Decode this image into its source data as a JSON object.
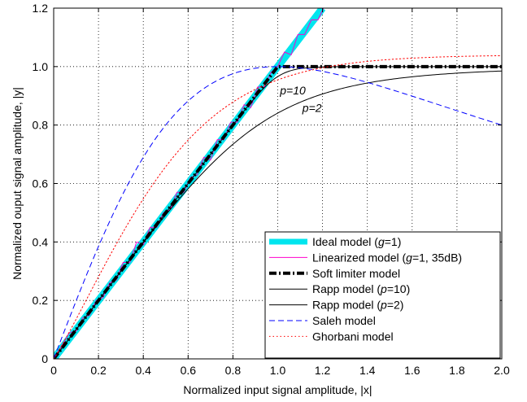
{
  "chart_data": {
    "type": "line",
    "xlabel": "Normalized input signal amplitude, |x|",
    "ylabel": "Normalized ouput signal amplitude, |y|",
    "xlim": [
      0,
      2.0
    ],
    "ylim": [
      0,
      1.2
    ],
    "xticks": [
      "0",
      "0.2",
      "0.4",
      "0.6",
      "0.8",
      "1.0",
      "1.2",
      "1.4",
      "1.6",
      "1.8",
      "2.0"
    ],
    "yticks": [
      "0",
      "0.2",
      "0.4",
      "0.6",
      "0.8",
      "1.0",
      "1.2"
    ],
    "grid": true,
    "legend_position": "bottom-right",
    "annotations": [
      {
        "text": "p=10",
        "x": 1.01,
        "y": 0.905,
        "italic": true
      },
      {
        "text": "p=2",
        "x": 1.11,
        "y": 0.845,
        "italic": true
      }
    ],
    "series": [
      {
        "name": "Ideal model (g=1)",
        "legend_parts": [
          [
            "Ideal model (",
            false
          ],
          [
            "g",
            true
          ],
          [
            "=1)",
            false
          ]
        ],
        "color": "#00e5ee",
        "style": "solid",
        "width": "thick",
        "x": [
          0,
          1.2
        ],
        "y": [
          0,
          1.2
        ]
      },
      {
        "name": "Linearized model (g=1, 35dB)",
        "legend_parts": [
          [
            "Linearized model (",
            false
          ],
          [
            "g",
            true
          ],
          [
            "=1, 35dB)",
            false
          ]
        ],
        "color": "#ff00cc",
        "style": "solid",
        "width": "thin",
        "x": [
          0,
          0.04,
          0.07,
          0.1,
          0.13,
          0.16,
          0.19,
          0.22,
          0.25,
          0.28,
          0.31,
          0.34,
          0.37,
          0.4,
          0.43,
          0.46,
          0.49,
          0.52,
          0.55,
          0.58,
          0.61,
          0.64,
          0.67,
          0.7,
          0.73,
          0.76,
          0.79,
          0.82,
          0.85,
          0.88,
          0.91,
          0.94,
          0.97,
          1.0,
          1.03,
          1.06,
          1.09,
          1.12,
          1.15,
          1.18,
          1.21
        ],
        "y": [
          0,
          0.05,
          0.09,
          0.095,
          0.14,
          0.15,
          0.2,
          0.21,
          0.26,
          0.27,
          0.33,
          0.33,
          0.4,
          0.39,
          0.45,
          0.45,
          0.5,
          0.51,
          0.57,
          0.57,
          0.62,
          0.63,
          0.69,
          0.68,
          0.75,
          0.75,
          0.81,
          0.81,
          0.87,
          0.86,
          0.93,
          0.93,
          0.98,
          1.0,
          1.05,
          1.04,
          1.11,
          1.11,
          1.16,
          1.16,
          1.21
        ]
      },
      {
        "name": "Soft limiter model",
        "legend_parts": [
          [
            "Soft limiter model",
            false
          ]
        ],
        "color": "#000000",
        "style": "dashdot",
        "width": "thick",
        "x": [
          0,
          1.0,
          2.0
        ],
        "y": [
          0,
          1.0,
          1.0
        ]
      },
      {
        "name": "Rapp model (p=10)",
        "legend_parts": [
          [
            "Rapp model (",
            false
          ],
          [
            "p",
            true
          ],
          [
            "=10)",
            false
          ]
        ],
        "color": "#000000",
        "style": "solid",
        "width": "thin",
        "model": "rapp",
        "p": 10
      },
      {
        "name": "Rapp model (p=2)",
        "legend_parts": [
          [
            "Rapp model (",
            false
          ],
          [
            "p",
            true
          ],
          [
            "=2)",
            false
          ]
        ],
        "color": "#000000",
        "style": "solid",
        "width": "thin",
        "model": "rapp",
        "p": 2
      },
      {
        "name": "Saleh model",
        "legend_parts": [
          [
            "Saleh model",
            false
          ]
        ],
        "color": "#0000ff",
        "style": "dashed",
        "width": "thin",
        "model": "saleh"
      },
      {
        "name": "Ghorbani model",
        "legend_parts": [
          [
            "Ghorbani model",
            false
          ]
        ],
        "color": "#ff0000",
        "style": "dotted",
        "width": "thin",
        "model": "ghorbani"
      }
    ]
  }
}
